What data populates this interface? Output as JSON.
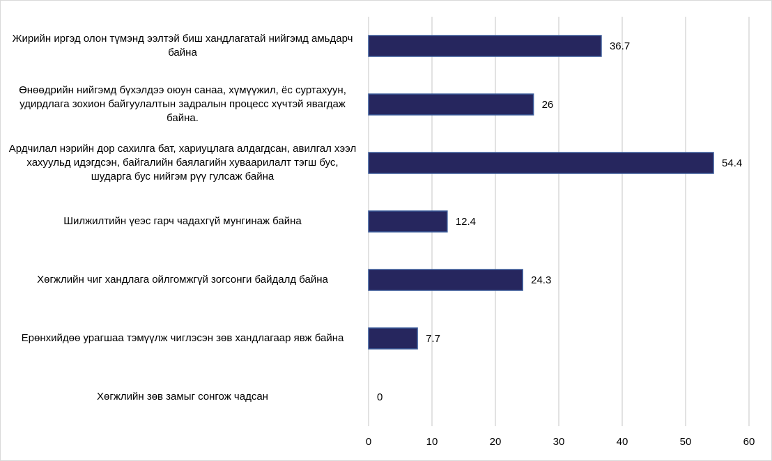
{
  "chart_data": {
    "type": "barh",
    "categories": [
      "Жирийн иргэд олон түмэнд ээлтэй биш хандлагатай нийгэмд амьдарч байна",
      "Өнөөдрийн нийгэмд бүхэлдээ оюун санаа, хүмүүжил, ёс суртахуун, удирдлага зохион байгуулалтын задралын процесс хүчтэй явагдаж байна.",
      "Ардчилал нэрийн дор сахилга бат, хариуцлага алдагдсан, авилгал хээл хахуульд идэгдсэн, байгалийн баялагийн хуваарилалт тэгш бус, шударга бус нийгэм рүү гулсаж байна",
      "Шилжилтийн үеэс гарч чадахгүй мунгинаж байна",
      "Хөгжлийн чиг хандлага ойлгомжгүй зогсонги байдалд байна",
      "Ерөнхийдөө урагшаа тэмүүлж чиглэсэн зөв хандлагаар явж байна",
      "Хөгжлийн зөв замыг сонгож чадсан"
    ],
    "values": [
      36.7,
      26,
      54.4,
      12.4,
      24.3,
      7.7,
      0
    ],
    "color": "#26265e",
    "xlim": [
      0,
      60
    ],
    "xticks": [
      0,
      10,
      20,
      30,
      40,
      50,
      60
    ],
    "grid": true
  }
}
